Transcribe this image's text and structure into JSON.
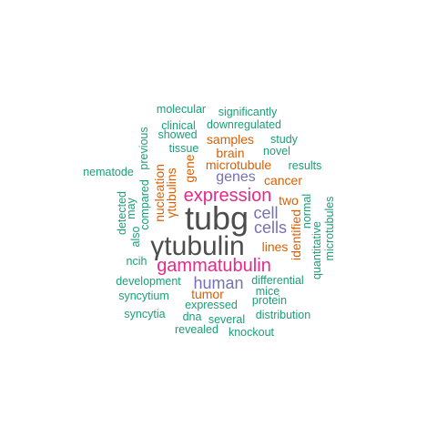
{
  "colors": {
    "dark_gray": "#4d4d4d",
    "magenta": "#e7298a",
    "purple": "#7570b3",
    "orange": "#d95f02",
    "teal": "#1b9e77"
  },
  "words": [
    {
      "text": "tubg",
      "color": "dark_gray"
    },
    {
      "text": "γtubulin",
      "color": "dark_gray"
    },
    {
      "text": "gammatubulin",
      "color": "magenta"
    },
    {
      "text": "expression",
      "color": "magenta"
    },
    {
      "text": "human",
      "color": "purple"
    },
    {
      "text": "cells",
      "color": "purple"
    },
    {
      "text": "cell",
      "color": "purple"
    },
    {
      "text": "genes",
      "color": "purple"
    },
    {
      "text": "microtubule",
      "color": "orange"
    },
    {
      "text": "tumor",
      "color": "orange"
    },
    {
      "text": "lines",
      "color": "orange"
    },
    {
      "text": "samples",
      "color": "orange"
    },
    {
      "text": "brain",
      "color": "orange"
    },
    {
      "text": "cancer",
      "color": "orange"
    },
    {
      "text": "two",
      "color": "orange"
    },
    {
      "text": "gene",
      "color": "orange"
    },
    {
      "text": "nucleation",
      "color": "orange"
    },
    {
      "text": "γtubulins",
      "color": "orange"
    },
    {
      "text": "identified",
      "color": "orange"
    },
    {
      "text": "molecular",
      "color": "teal"
    },
    {
      "text": "significantly",
      "color": "teal"
    },
    {
      "text": "clinical",
      "color": "teal"
    },
    {
      "text": "downregulated",
      "color": "teal"
    },
    {
      "text": "showed",
      "color": "teal"
    },
    {
      "text": "previous",
      "color": "teal"
    },
    {
      "text": "study",
      "color": "teal"
    },
    {
      "text": "tissue",
      "color": "teal"
    },
    {
      "text": "novel",
      "color": "teal"
    },
    {
      "text": "nematode",
      "color": "teal"
    },
    {
      "text": "results",
      "color": "teal"
    },
    {
      "text": "detected",
      "color": "teal"
    },
    {
      "text": "may",
      "color": "teal"
    },
    {
      "text": "compared",
      "color": "teal"
    },
    {
      "text": "also",
      "color": "teal"
    },
    {
      "text": "normal",
      "color": "teal"
    },
    {
      "text": "quantitative",
      "color": "teal"
    },
    {
      "text": "microtubules",
      "color": "teal"
    },
    {
      "text": "ncih",
      "color": "teal"
    },
    {
      "text": "development",
      "color": "teal"
    },
    {
      "text": "differential",
      "color": "teal"
    },
    {
      "text": "syncytium",
      "color": "teal"
    },
    {
      "text": "mice",
      "color": "teal"
    },
    {
      "text": "protein",
      "color": "teal"
    },
    {
      "text": "expressed",
      "color": "teal"
    },
    {
      "text": "syncytia",
      "color": "teal"
    },
    {
      "text": "dna",
      "color": "teal"
    },
    {
      "text": "several",
      "color": "teal"
    },
    {
      "text": "distribution",
      "color": "teal"
    },
    {
      "text": "revealed",
      "color": "teal"
    },
    {
      "text": "knockout",
      "color": "teal"
    }
  ]
}
